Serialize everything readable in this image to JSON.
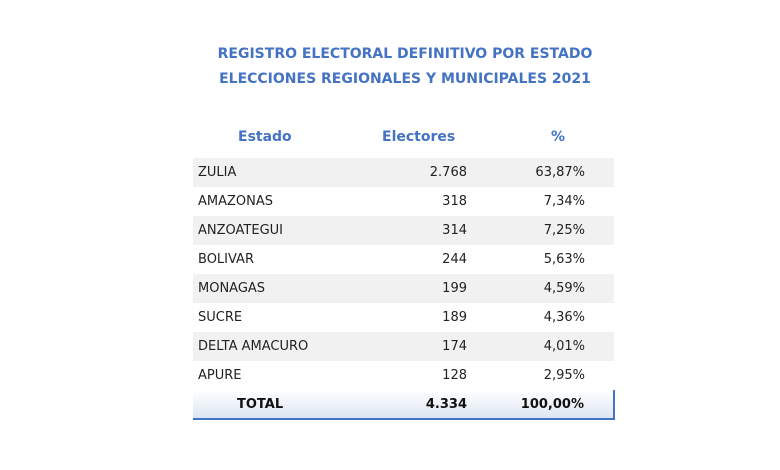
{
  "title": [
    "REGISTRO ELECTORAL DEFINITIVO POR ESTADO",
    "ELECCIONES REGIONALES Y MUNICIPALES 2021"
  ],
  "headers": [
    "Estado",
    "Electores",
    "%"
  ],
  "rows": [
    [
      "ZULIA",
      "2.768",
      "63,87%"
    ],
    [
      "AMAZONAS",
      "318",
      "7,34%"
    ],
    [
      "ANZOATEGUI",
      "314",
      "7,25%"
    ],
    [
      "BOLIVAR",
      "244",
      "5,63%"
    ],
    [
      "MONAGAS",
      "199",
      "4,59%"
    ],
    [
      "SUCRE",
      "189",
      "4,36%"
    ],
    [
      "DELTA AMACURO",
      "174",
      "4,01%"
    ],
    [
      "APURE",
      "128",
      "2,95%"
    ]
  ],
  "total": [
    "TOTAL",
    "4.334",
    "100,00%"
  ],
  "accent": "#4472c4"
}
